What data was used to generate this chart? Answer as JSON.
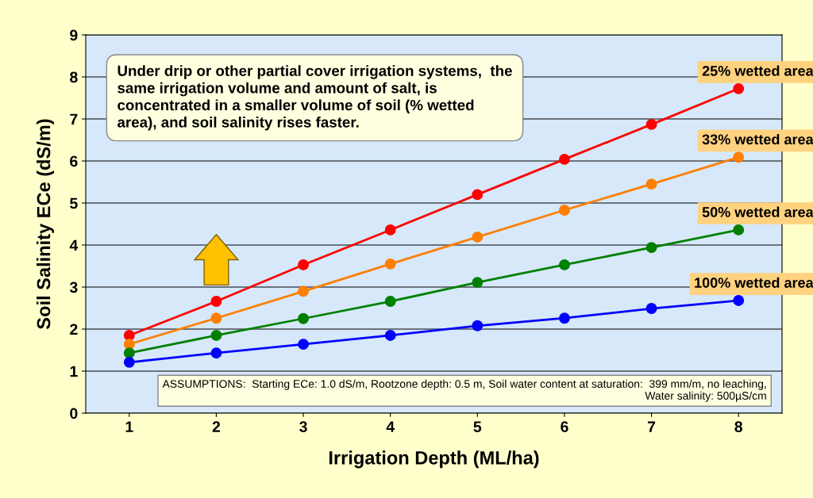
{
  "chart_data": {
    "type": "line",
    "xlabel": "Irrigation Depth (ML/ha)",
    "ylabel": "Soil Salinity ECe (dS/m)",
    "categories": [
      "1",
      "2",
      "3",
      "4",
      "5",
      "6",
      "7",
      "8"
    ],
    "ylim": [
      0,
      9
    ],
    "yticks": [
      0,
      1,
      2,
      3,
      4,
      5,
      6,
      7,
      8,
      9
    ],
    "grid": "y",
    "legend": false,
    "marker": "circle",
    "line_style": "solid",
    "series": [
      {
        "name": "25% wetted area",
        "color": "#ff0000",
        "values": [
          1.85,
          2.66,
          3.53,
          4.36,
          5.2,
          6.04,
          6.87,
          7.72
        ]
      },
      {
        "name": "33% wetted area",
        "color": "#ff7f00",
        "values": [
          1.64,
          2.26,
          2.9,
          3.55,
          4.19,
          4.83,
          5.45,
          6.09
        ]
      },
      {
        "name": "50% wetted area",
        "color": "#008000",
        "values": [
          1.43,
          1.85,
          2.25,
          2.66,
          3.11,
          3.53,
          3.94,
          4.36
        ]
      },
      {
        "name": "100% wetted area",
        "color": "#0000ff",
        "values": [
          1.21,
          1.43,
          1.64,
          1.85,
          2.08,
          2.26,
          2.49,
          2.68
        ]
      }
    ],
    "annotations": [
      "Under drip or other partial cover irrigation systems,  the same irrigation volume and amount of salt, is concentrated in a smaller volume of soil (% wetted area), and soil salinity rises faster.",
      "ASSUMPTIONS:  Starting ECe: 1.0 dS/m, Rootzone depth: 0.5 m, Soil water content at saturation:  399 mm/m, no leaching, Water salinity: 500µS/cm"
    ]
  }
}
